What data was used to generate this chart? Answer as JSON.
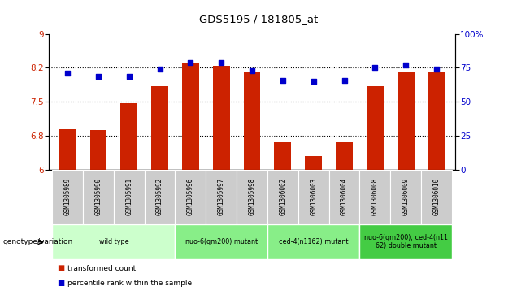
{
  "title": "GDS5195 / 181805_at",
  "samples": [
    "GSM1305989",
    "GSM1305990",
    "GSM1305991",
    "GSM1305992",
    "GSM1305996",
    "GSM1305997",
    "GSM1305998",
    "GSM1306002",
    "GSM1306003",
    "GSM1306004",
    "GSM1306008",
    "GSM1306009",
    "GSM1306010"
  ],
  "bar_values": [
    6.9,
    6.88,
    7.46,
    7.85,
    8.35,
    8.3,
    8.15,
    6.6,
    6.3,
    6.6,
    7.85,
    8.15,
    8.15
  ],
  "dot_values_pct": [
    71,
    69,
    69,
    74,
    79,
    79,
    73,
    66,
    65,
    66,
    75,
    77,
    74
  ],
  "ylim_left": [
    6,
    9
  ],
  "ylim_right": [
    0,
    100
  ],
  "yticks_left": [
    6,
    6.75,
    7.5,
    8.25,
    9
  ],
  "yticks_right": [
    0,
    25,
    50,
    75,
    100
  ],
  "bar_color": "#cc2200",
  "dot_color": "#0000cc",
  "group_colors": [
    "#ccffcc",
    "#88ee88",
    "#44cc44",
    "#22bb22"
  ],
  "groups": [
    {
      "label": "wild type",
      "start": 0,
      "end": 4,
      "color_idx": 0
    },
    {
      "label": "nuo-6(qm200) mutant",
      "start": 4,
      "end": 7,
      "color_idx": 1
    },
    {
      "label": "ced-4(n1162) mutant",
      "start": 7,
      "end": 10,
      "color_idx": 1
    },
    {
      "label": "nuo-6(qm200); ced-4(n11\n62) double mutant",
      "start": 10,
      "end": 13,
      "color_idx": 2
    }
  ],
  "genotype_label": "genotype/variation",
  "legend_bar_label": "transformed count",
  "legend_dot_label": "percentile rank within the sample",
  "tick_label_color_left": "#cc2200",
  "tick_label_color_right": "#0000cc",
  "sample_box_color": "#cccccc",
  "separator_color": "#888888"
}
